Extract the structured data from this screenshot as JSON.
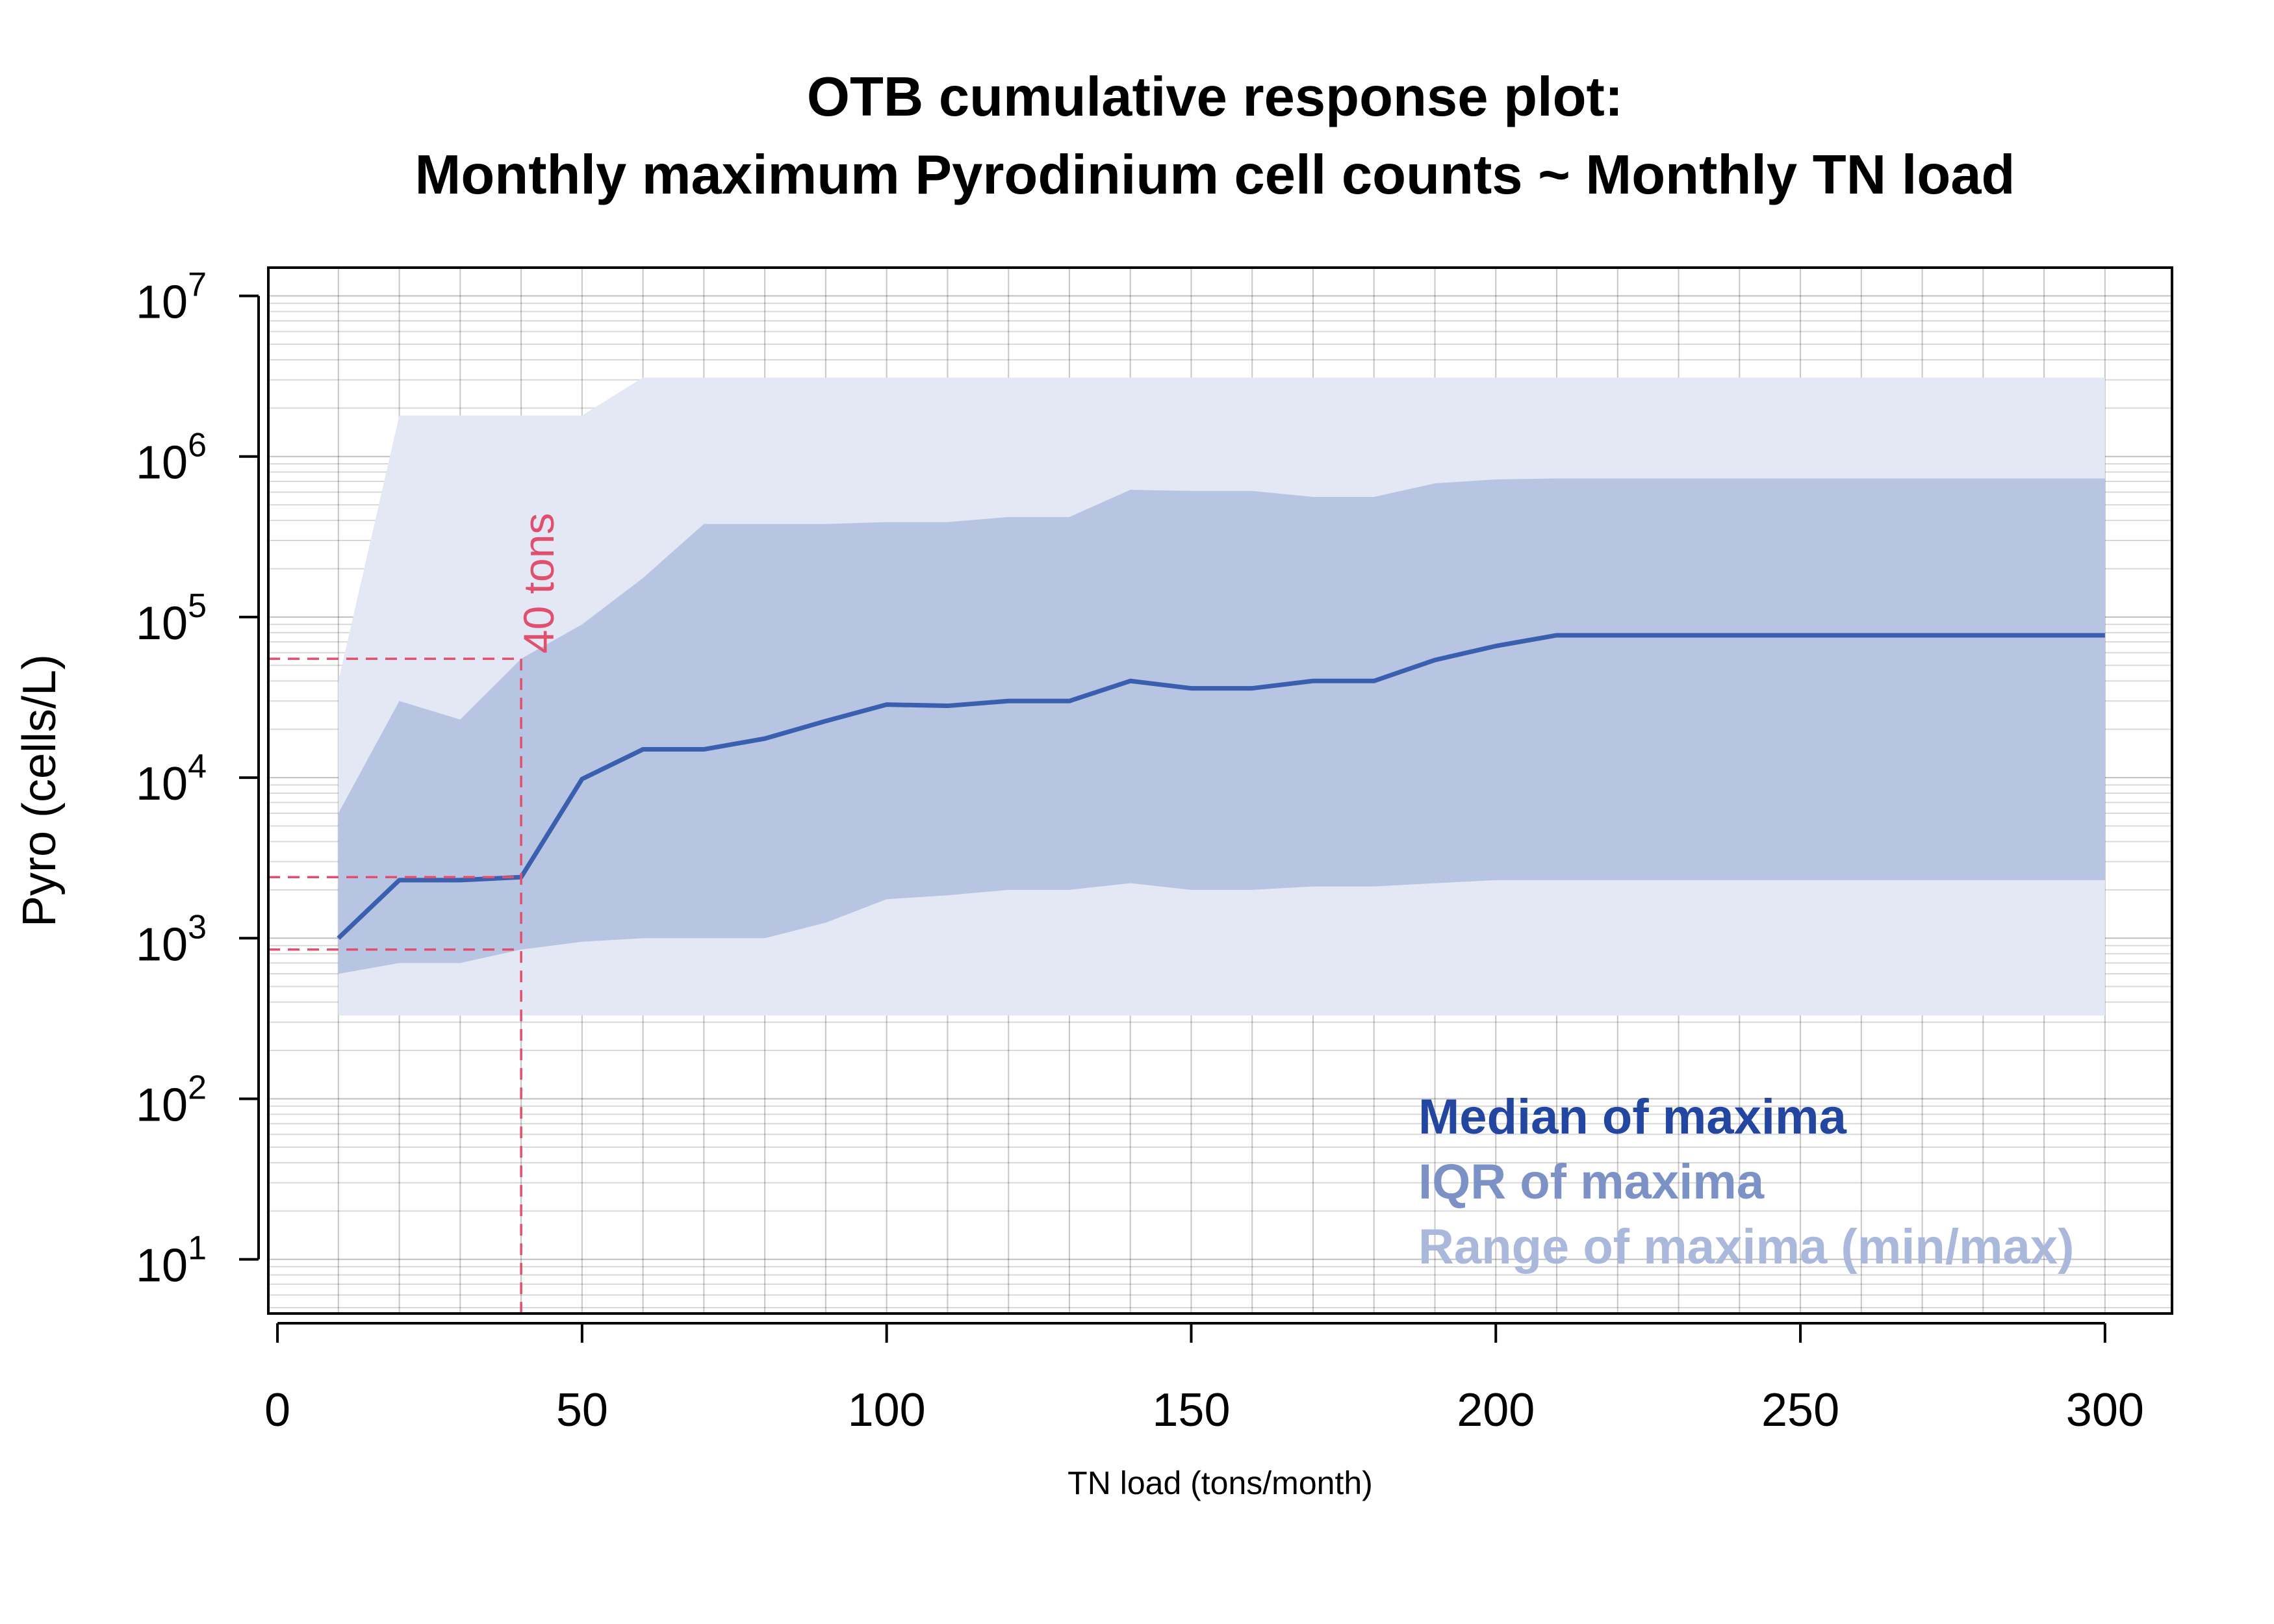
{
  "chart_data": {
    "type": "area",
    "title": [
      "OTB cumulative response plot:",
      "Monthly maximum Pyrodinium cell counts ~ Monthly TN load"
    ],
    "xlabel": "TN load (tons/month)",
    "ylabel": "Pyro (cells/L)",
    "xlim": [
      -1.5,
      311
    ],
    "ylim": [
      4.6,
      15000000
    ],
    "y_scale": "log",
    "grid": true,
    "x_ticks": [
      0,
      50,
      100,
      150,
      200,
      250,
      300
    ],
    "x_tick_labels": [
      "0",
      "50",
      "100",
      "150",
      "200",
      "250",
      "300"
    ],
    "y_ticks": [
      10,
      100,
      1000,
      10000,
      100000,
      1000000,
      10000000
    ],
    "y_tick_bases": [
      "10",
      "10",
      "10",
      "10",
      "10",
      "10",
      "10"
    ],
    "y_tick_exponents": [
      "1",
      "2",
      "3",
      "4",
      "5",
      "6",
      "7"
    ],
    "x": [
      10,
      20,
      30,
      40,
      50,
      60,
      70,
      80,
      90,
      100,
      110,
      120,
      130,
      140,
      150,
      160,
      170,
      180,
      190,
      200,
      210,
      220,
      230,
      240,
      250,
      260,
      270,
      280,
      290,
      300
    ],
    "series": [
      {
        "name": "Median of maxima",
        "color": "#3a5fae",
        "values": [
          1000,
          2300,
          2300,
          2400,
          9800,
          15000,
          15000,
          17500,
          22500,
          28500,
          28000,
          30000,
          30000,
          40000,
          36000,
          36000,
          40000,
          40000,
          54000,
          66000,
          77000,
          77000,
          77000,
          77000,
          77000,
          77000,
          77000,
          77000,
          77000,
          77000
        ]
      },
      {
        "name": "IQR of maxima",
        "color": "#b7c4e2",
        "lower": [
          600,
          700,
          700,
          850,
          950,
          1000,
          1000,
          1000,
          1250,
          1750,
          1850,
          2000,
          2000,
          2200,
          2000,
          2000,
          2100,
          2100,
          2200,
          2300,
          2300,
          2300,
          2300,
          2300,
          2300,
          2300,
          2300,
          2300,
          2300,
          2300
        ],
        "upper": [
          6000,
          30000,
          23000,
          55000,
          90000,
          175000,
          380000,
          380000,
          380000,
          390000,
          390000,
          420000,
          420000,
          620000,
          610000,
          610000,
          560000,
          560000,
          680000,
          720000,
          730000,
          730000,
          730000,
          730000,
          730000,
          730000,
          730000,
          730000,
          730000,
          730000
        ]
      },
      {
        "name": "Range of maxima (min/max)",
        "color": "#e4e8f4",
        "lower": [
          330,
          330,
          330,
          330,
          330,
          330,
          330,
          330,
          330,
          330,
          330,
          330,
          330,
          330,
          330,
          330,
          330,
          330,
          330,
          330,
          330,
          330,
          330,
          330,
          330,
          330,
          330,
          330,
          330,
          330
        ],
        "upper": [
          40000,
          1800000,
          1800000,
          1800000,
          1800000,
          3100000,
          3100000,
          3100000,
          3100000,
          3100000,
          3100000,
          3100000,
          3100000,
          3100000,
          3100000,
          3100000,
          3100000,
          3100000,
          3100000,
          3100000,
          3100000,
          3100000,
          3100000,
          3100000,
          3100000,
          3100000,
          3100000,
          3100000,
          3100000,
          3100000
        ]
      }
    ],
    "threshold": {
      "x": 40,
      "label": "40 tons",
      "color": "#e0506e",
      "y_values": [
        55000,
        2400,
        850
      ]
    },
    "legend": {
      "placement": "bottom-right",
      "entries": [
        {
          "label": "Median of maxima",
          "color": "#2347a0"
        },
        {
          "label": "IQR of maxima",
          "color": "#7c92c6"
        },
        {
          "label": "Range of maxima (min/max)",
          "color": "#aab8dc"
        }
      ]
    }
  }
}
